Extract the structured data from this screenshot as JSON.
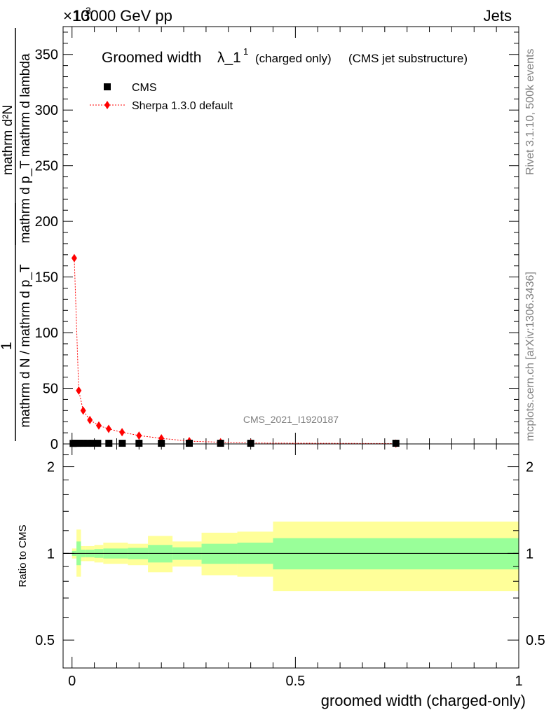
{
  "header": {
    "energy": "13000 GeV pp",
    "process": "Jets",
    "exponent": "×10",
    "exponent_power": "3"
  },
  "side_text": {
    "rivet": "Rivet 3.1.10,  500k events",
    "mcplots": "mcplots.cern.ch [arXiv:1306.3436]"
  },
  "analysis_id": "CMS_2021_I1920187",
  "chart_data": [
    {
      "type": "scatter",
      "title": "Groomed width",
      "title_symbol": "λ_1",
      "title_sup": "1",
      "title_suffix_1": "(charged only)",
      "title_suffix_2": "(CMS jet substructure)",
      "ylabel": {
        "frac_num": "1",
        "frac_den": "mathrm d N / mathrm d p_T",
        "expr_num": "mathrm d²N",
        "expr_den": "mathrm d p_T mathrm d lambda"
      },
      "xlim": [
        -0.02,
        1.0
      ],
      "ylim": [
        0,
        375
      ],
      "yticks": [
        0,
        50,
        100,
        150,
        200,
        250,
        300,
        350
      ],
      "ytick_labels": [
        "0",
        "50",
        "100",
        "150",
        "200",
        "250",
        "300",
        "350"
      ],
      "legend": [
        {
          "name": "CMS",
          "marker": "square",
          "color": "#000000"
        },
        {
          "name": "Sherpa 1.3.0 default",
          "marker": "diamond",
          "color": "#ff0000",
          "line": "dotted"
        }
      ],
      "series": [
        {
          "name": "CMS",
          "x": [
            0.0025,
            0.0075,
            0.0125,
            0.0175,
            0.025,
            0.035,
            0.045,
            0.0575,
            0.0825,
            0.1125,
            0.15,
            0.2,
            0.2625,
            0.3325,
            0.4,
            0.725
          ],
          "y": [
            0.5,
            0.6,
            0.6,
            0.6,
            0.6,
            0.6,
            0.6,
            0.6,
            0.6,
            0.6,
            0.6,
            0.6,
            0.6,
            0.6,
            0.6,
            0.6
          ]
        },
        {
          "name": "Sherpa 1.3.0 default",
          "x": [
            0.005,
            0.015,
            0.025,
            0.04,
            0.06,
            0.082,
            0.112,
            0.15,
            0.2,
            0.2625,
            0.3325,
            0.4,
            0.725
          ],
          "y": [
            167,
            48,
            30,
            21.5,
            16.5,
            13.5,
            10.5,
            7.5,
            5,
            2.5,
            1.5,
            0.8,
            0.3
          ]
        }
      ]
    },
    {
      "type": "area",
      "ylabel": "Ratio to CMS",
      "xlabel": "groomed width (charged-only)",
      "xlim": [
        -0.02,
        1.0
      ],
      "ylim": [
        0.4,
        2.4
      ],
      "yscale": "log",
      "yticks": [
        0.5,
        1,
        2
      ],
      "ytick_labels": [
        "0.5",
        "1",
        "2"
      ],
      "xticks": [
        0,
        0.5,
        1
      ],
      "xtick_labels": [
        "0",
        "0.5",
        "1"
      ],
      "reference_line": 1,
      "bins": [
        {
          "x0": 0.0,
          "x1": 0.01,
          "inner": [
            0.98,
            1.02
          ],
          "outer": [
            0.96,
            1.04
          ]
        },
        {
          "x0": 0.01,
          "x1": 0.02,
          "inner": [
            0.91,
            1.1
          ],
          "outer": [
            0.83,
            1.21
          ]
        },
        {
          "x0": 0.02,
          "x1": 0.03,
          "inner": [
            0.97,
            1.03
          ],
          "outer": [
            0.94,
            1.06
          ]
        },
        {
          "x0": 0.03,
          "x1": 0.05,
          "inner": [
            0.97,
            1.03
          ],
          "outer": [
            0.94,
            1.06
          ]
        },
        {
          "x0": 0.05,
          "x1": 0.07,
          "inner": [
            0.965,
            1.035
          ],
          "outer": [
            0.93,
            1.07
          ]
        },
        {
          "x0": 0.07,
          "x1": 0.125,
          "inner": [
            0.96,
            1.04
          ],
          "outer": [
            0.92,
            1.09
          ]
        },
        {
          "x0": 0.125,
          "x1": 0.17,
          "inner": [
            0.955,
            1.045
          ],
          "outer": [
            0.91,
            1.08
          ]
        },
        {
          "x0": 0.17,
          "x1": 0.225,
          "inner": [
            0.93,
            1.07
          ],
          "outer": [
            0.86,
            1.15
          ]
        },
        {
          "x0": 0.225,
          "x1": 0.29,
          "inner": [
            0.95,
            1.05
          ],
          "outer": [
            0.9,
            1.1
          ]
        },
        {
          "x0": 0.29,
          "x1": 0.37,
          "inner": [
            0.92,
            1.08
          ],
          "outer": [
            0.84,
            1.18
          ]
        },
        {
          "x0": 0.37,
          "x1": 0.45,
          "inner": [
            0.92,
            1.09
          ],
          "outer": [
            0.83,
            1.19
          ]
        },
        {
          "x0": 0.45,
          "x1": 1.0,
          "inner": [
            0.88,
            1.13
          ],
          "outer": [
            0.74,
            1.29
          ]
        }
      ]
    }
  ]
}
